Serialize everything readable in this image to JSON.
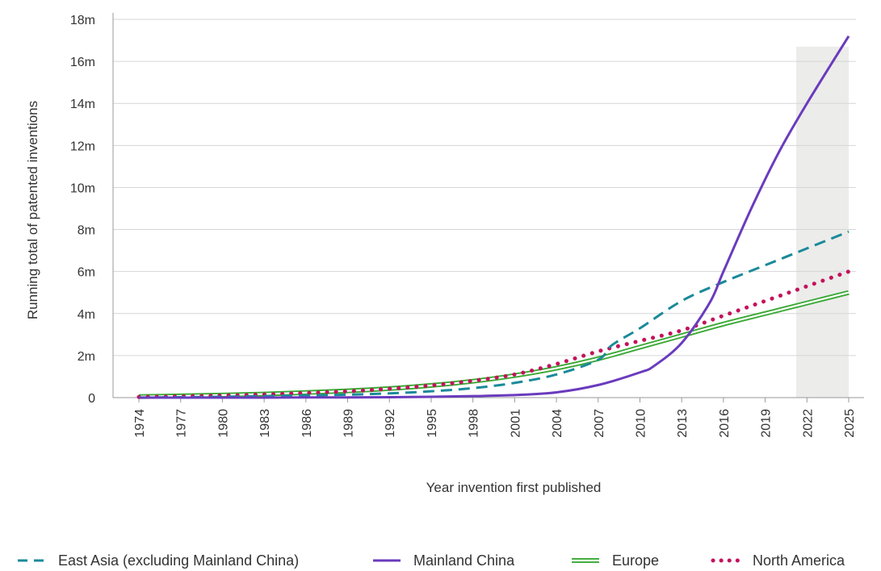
{
  "chart_data": {
    "type": "line",
    "xlabel": "Year invention first published",
    "ylabel": "Running total of patented inventions",
    "x_ticks": [
      "1974",
      "1977",
      "1980",
      "1983",
      "1986",
      "1989",
      "1992",
      "1995",
      "1998",
      "2001",
      "2004",
      "2007",
      "2010",
      "2013",
      "2016",
      "2019",
      "2022",
      "2025"
    ],
    "y_ticks": [
      "0",
      "2m",
      "4m",
      "6m",
      "8m",
      "10m",
      "12m",
      "14m",
      "16m",
      "18m"
    ],
    "xlim": [
      1974,
      2025
    ],
    "ylim": [
      0,
      18
    ],
    "grid": "horizontal",
    "legend_position": "bottom",
    "shaded_region": {
      "x_start": 2021,
      "x_end": 2025,
      "color": "#ececea"
    },
    "series": [
      {
        "name": "East Asia (excluding Mainland China)",
        "color": "#1a8a9a",
        "style": "dashed",
        "x": [
          1974,
          1977,
          1980,
          1983,
          1986,
          1989,
          1992,
          1995,
          1998,
          2001,
          2004,
          2007,
          2008,
          2010,
          2013,
          2016,
          2019,
          2022,
          2025
        ],
        "y": [
          0.0,
          0.02,
          0.04,
          0.07,
          0.1,
          0.14,
          0.2,
          0.3,
          0.45,
          0.7,
          1.1,
          1.8,
          2.5,
          3.3,
          4.6,
          5.5,
          6.3,
          7.1,
          7.9
        ]
      },
      {
        "name": "Mainland China",
        "color": "#6a3bbd",
        "style": "solid",
        "x": [
          1974,
          1977,
          1980,
          1983,
          1986,
          1989,
          1992,
          1995,
          1998,
          2001,
          2004,
          2007,
          2010,
          2011,
          2013,
          2015,
          2016,
          2018,
          2020,
          2022,
          2025
        ],
        "y": [
          0.0,
          0.0,
          0.0,
          0.0,
          0.01,
          0.01,
          0.02,
          0.04,
          0.07,
          0.12,
          0.25,
          0.6,
          1.2,
          1.5,
          2.6,
          4.5,
          6.0,
          9.0,
          11.7,
          14.0,
          17.2
        ]
      },
      {
        "name": "Europe",
        "color": "#3aaa35",
        "style": "double",
        "x": [
          1974,
          1977,
          1980,
          1983,
          1986,
          1989,
          1992,
          1995,
          1998,
          2001,
          2004,
          2007,
          2010,
          2013,
          2016,
          2019,
          2022,
          2025
        ],
        "y": [
          0.05,
          0.08,
          0.12,
          0.17,
          0.24,
          0.32,
          0.43,
          0.58,
          0.78,
          1.05,
          1.4,
          1.85,
          2.4,
          2.95,
          3.5,
          4.0,
          4.5,
          5.0
        ]
      },
      {
        "name": "North America",
        "color": "#c4125c",
        "style": "dotted",
        "x": [
          1974,
          1977,
          1980,
          1983,
          1986,
          1989,
          1992,
          1995,
          1998,
          2001,
          2004,
          2007,
          2010,
          2013,
          2016,
          2019,
          2022,
          2025
        ],
        "y": [
          0.03,
          0.06,
          0.1,
          0.15,
          0.22,
          0.3,
          0.42,
          0.58,
          0.8,
          1.1,
          1.6,
          2.2,
          2.7,
          3.2,
          3.9,
          4.6,
          5.3,
          6.0
        ]
      }
    ]
  }
}
